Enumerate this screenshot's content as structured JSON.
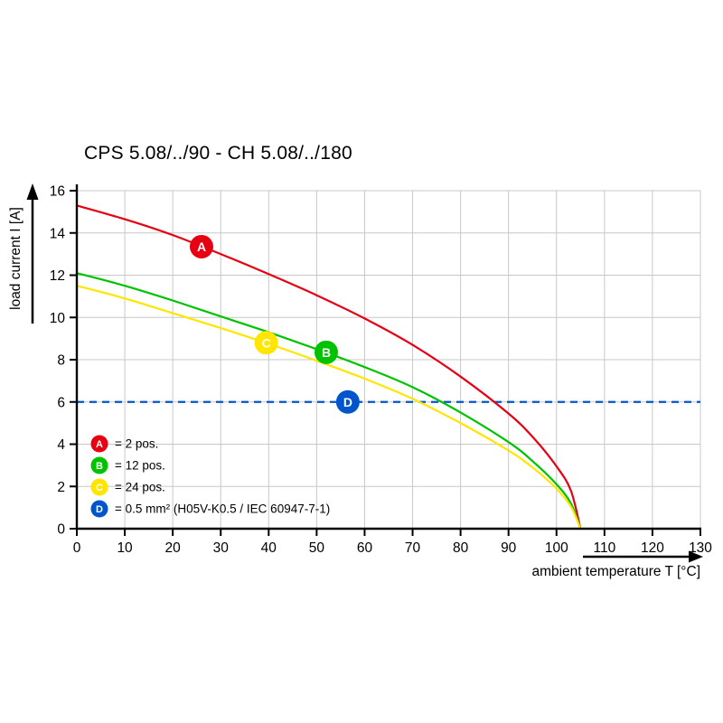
{
  "chart_data": {
    "type": "line",
    "title": "CPS 5.08/../90 - CH 5.08/../180",
    "xlabel": "ambient temperature T [°C]",
    "ylabel": "load current I [A]",
    "xlim": [
      0,
      130
    ],
    "ylim": [
      0,
      16
    ],
    "xticks": [
      0,
      10,
      20,
      30,
      40,
      50,
      60,
      70,
      80,
      90,
      100,
      110,
      120,
      130
    ],
    "yticks": [
      0,
      2,
      4,
      6,
      8,
      10,
      12,
      14,
      16
    ],
    "grid": true,
    "legend_position": "inside lower-left",
    "colors": {
      "grid": "#c8c8c8",
      "axis": "#000000",
      "background": "#ffffff"
    },
    "series": [
      {
        "id": "A",
        "legend_label": "= 2 pos.",
        "color": "#e60012",
        "style": "solid",
        "x": [
          0,
          10,
          20,
          30,
          40,
          50,
          60,
          70,
          80,
          90,
          95,
          100,
          103,
          105
        ],
        "y": [
          15.3,
          14.65,
          13.9,
          13.0,
          12.05,
          11.05,
          9.95,
          8.7,
          7.2,
          5.45,
          4.35,
          2.95,
          1.8,
          0
        ]
      },
      {
        "id": "B",
        "legend_label": "= 12 pos.",
        "color": "#00c300",
        "style": "solid",
        "x": [
          0,
          10,
          20,
          30,
          40,
          50,
          60,
          70,
          80,
          90,
          95,
          100,
          103,
          105
        ],
        "y": [
          12.1,
          11.5,
          10.8,
          10.05,
          9.3,
          8.5,
          7.65,
          6.7,
          5.5,
          4.1,
          3.2,
          2.1,
          1.2,
          0
        ]
      },
      {
        "id": "C",
        "legend_label": "= 24 pos.",
        "color": "#ffe600",
        "style": "solid",
        "x": [
          0,
          10,
          20,
          30,
          40,
          50,
          60,
          70,
          80,
          90,
          95,
          100,
          103,
          105
        ],
        "y": [
          11.5,
          10.9,
          10.2,
          9.5,
          8.75,
          7.95,
          7.1,
          6.15,
          5.0,
          3.7,
          2.9,
          1.9,
          1.05,
          0
        ]
      },
      {
        "id": "D",
        "legend_label": "= 0.5 mm² (H05V-K0.5 / IEC 60947-7-1)",
        "color": "#0055cc",
        "style": "dashed_hline",
        "value": 6
      }
    ],
    "markers": [
      {
        "letter": "A",
        "x": 26,
        "y": 13.35,
        "color": "#e60012"
      },
      {
        "letter": "C",
        "x": 39.5,
        "y": 8.8,
        "color": "#ffe600"
      },
      {
        "letter": "B",
        "x": 52,
        "y": 8.35,
        "color": "#00c300"
      },
      {
        "letter": "D",
        "x": 56.5,
        "y": 6.0,
        "color": "#0055cc"
      }
    ]
  }
}
